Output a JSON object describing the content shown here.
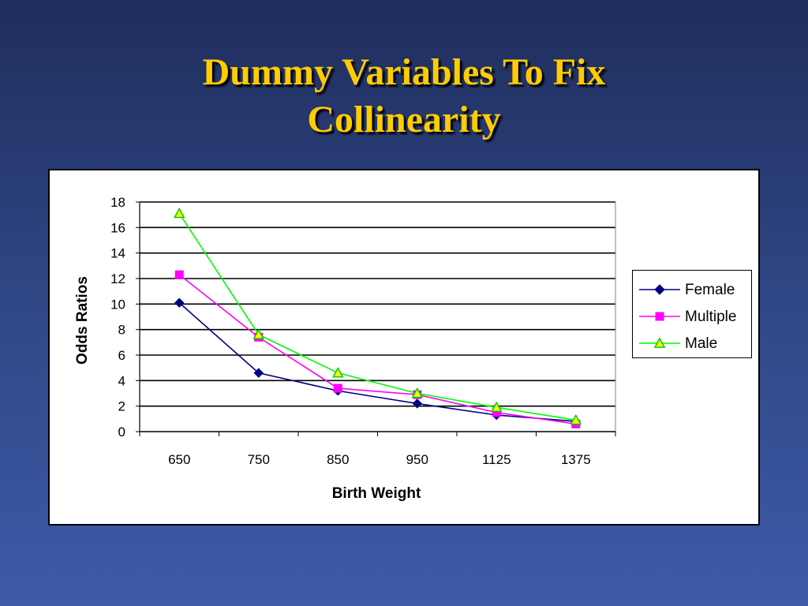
{
  "slide": {
    "title_line1": "Dummy Variables To Fix",
    "title_line2": "Collinearity"
  },
  "chart_data": {
    "type": "line",
    "categories": [
      "650",
      "750",
      "850",
      "950",
      "1125",
      "1375"
    ],
    "xlabel": "Birth Weight",
    "ylabel": "Odds Ratios",
    "ylim": [
      0,
      18
    ],
    "yticks": [
      0,
      2,
      4,
      6,
      8,
      10,
      12,
      14,
      16,
      18
    ],
    "grid": true,
    "legend_position": "right",
    "series": [
      {
        "name": "Female",
        "values": [
          10.1,
          4.6,
          3.2,
          2.2,
          1.3,
          0.8
        ],
        "color": "#000080",
        "marker": "diamond"
      },
      {
        "name": "Multiple",
        "values": [
          12.3,
          7.4,
          3.4,
          2.9,
          1.5,
          0.6
        ],
        "color": "#ff00ff",
        "marker": "square"
      },
      {
        "name": "Male",
        "values": [
          17.1,
          7.6,
          4.6,
          3.0,
          1.9,
          0.9
        ],
        "color": "#00ff00",
        "marker": "triangle"
      }
    ]
  }
}
